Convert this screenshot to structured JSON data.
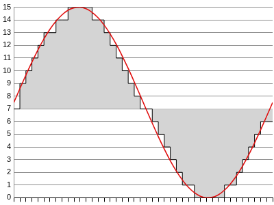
{
  "chart_data": {
    "type": "line",
    "x": [
      0,
      1,
      2,
      3,
      4,
      5,
      6,
      7,
      8,
      9,
      10,
      11,
      12,
      13,
      14,
      15,
      16,
      17,
      18,
      19,
      20,
      21,
      22,
      23,
      24,
      25,
      26,
      27,
      28,
      29,
      30,
      31,
      32,
      33,
      34,
      35,
      36,
      37,
      38,
      39,
      40,
      41,
      42,
      43
    ],
    "series": [
      {
        "type": "line",
        "color": "#e01010",
        "line_style": "solid",
        "values": [
          7.5,
          8.59,
          9.66,
          10.68,
          11.64,
          12.51,
          13.27,
          13.9,
          14.4,
          14.76,
          14.96,
          14.99,
          14.88,
          14.6,
          14.17,
          13.6,
          12.9,
          12.09,
          11.17,
          10.18,
          9.13,
          8.05,
          6.95,
          5.87,
          4.82,
          3.83,
          2.91,
          2.1,
          1.4,
          0.83,
          0.4,
          0.12,
          0.01,
          0.04,
          0.24,
          0.6,
          1.1,
          1.73,
          2.49,
          3.36,
          4.32,
          5.34,
          6.41,
          7.5
        ]
      },
      {
        "type": "area",
        "color": "#d4d4d4",
        "line_style": "stepped",
        "baseline": 7,
        "values": [
          7,
          9,
          10,
          11,
          12,
          13,
          13,
          14,
          14,
          15,
          15,
          15,
          15,
          14,
          14,
          13,
          12,
          11,
          10,
          9,
          8,
          7,
          7,
          6,
          5,
          4,
          3,
          2,
          1,
          1,
          0,
          0,
          0,
          0,
          0,
          1,
          1,
          2,
          3,
          4,
          5,
          6,
          6,
          6
        ]
      }
    ],
    "xlim": [
      0,
      43
    ],
    "xticks": [
      0,
      1,
      2,
      3,
      4,
      5,
      6,
      7,
      8,
      9,
      10,
      11,
      12,
      13,
      14,
      15,
      16,
      17,
      18,
      19,
      20,
      21,
      22,
      23,
      24,
      25,
      26,
      27,
      28,
      29,
      30,
      31,
      32,
      33,
      34,
      35,
      36,
      37,
      38,
      39,
      40,
      41,
      42,
      43
    ],
    "ylim": [
      0,
      15
    ],
    "yticks": [
      0,
      1,
      2,
      3,
      4,
      5,
      6,
      7,
      8,
      9,
      10,
      11,
      12,
      13,
      14,
      15
    ],
    "grid": true,
    "tick_labels": "y"
  }
}
